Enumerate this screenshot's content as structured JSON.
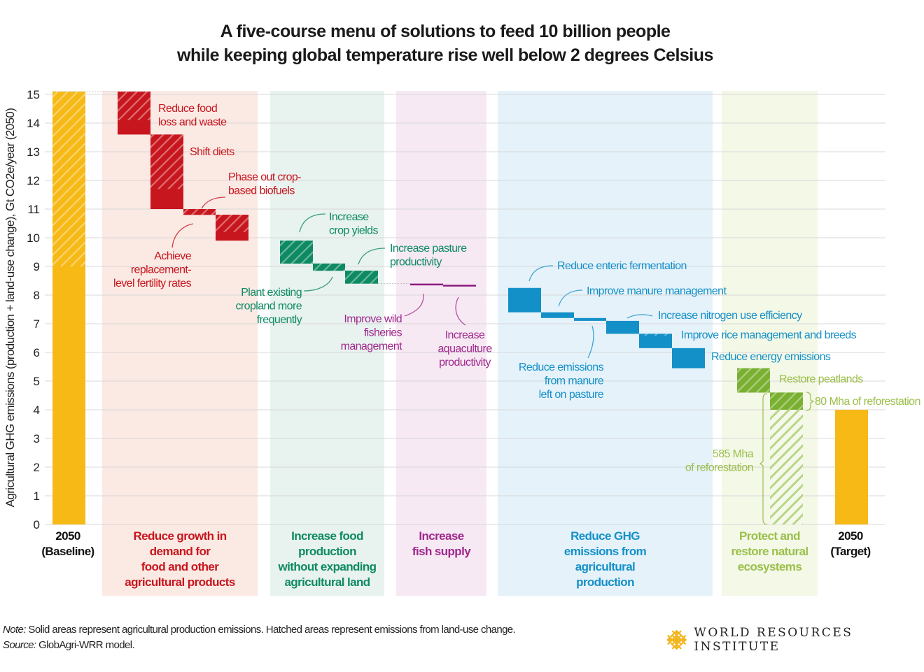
{
  "title_lines": [
    "A five-course menu of solutions to feed 10 billion people",
    "while keeping global temperature rise well below 2 degrees Celsius"
  ],
  "note_label": "Note:",
  "note_text": " Solid areas represent agricultural production emissions. Hatched areas represent emissions from land-use change.",
  "source_label": "Source:",
  "source_text": " GlobAgri-WRR model.",
  "logo_text": "WORLD RESOURCES INSTITUTE",
  "chart_data": {
    "type": "bar",
    "subtype": "waterfall",
    "title": "A five-course menu of solutions to feed 10 billion people while keeping global temperature rise well below 2 degrees Celsius",
    "ylabel": "Agricultural GHG emissions (production + land-use change), Gt CO2e/year (2050)",
    "ylim": [
      0,
      15
    ],
    "yticks": [
      0,
      1,
      2,
      3,
      4,
      5,
      6,
      7,
      8,
      9,
      10,
      11,
      12,
      13,
      14,
      15
    ],
    "grid": true,
    "colors": {
      "baseline": "#f6b916",
      "demand": "#c8161e",
      "production": "#0e8a63",
      "fish": "#8c1a7f",
      "ghg": "#1490c8",
      "ecosystems": "#7ab031"
    },
    "groups": [
      {
        "key": "baseline",
        "label_lines": [
          "2050",
          "(Baseline)"
        ],
        "label_color": "#111111",
        "bg": null
      },
      {
        "key": "demand",
        "label_lines": [
          "Reduce growth in",
          "demand for",
          "food and other",
          "agricultural products"
        ],
        "label_color": "#c8161e",
        "bg": "#fbe9e4"
      },
      {
        "key": "production",
        "label_lines": [
          "Increase food",
          "production",
          "without expanding",
          "agricultural land"
        ],
        "label_color": "#0e8a63",
        "bg": "#e8f2ef"
      },
      {
        "key": "fish",
        "label_lines": [
          "Increase",
          "fish supply"
        ],
        "label_color": "#a0288e",
        "bg": "#f6e9f3"
      },
      {
        "key": "ghg",
        "label_lines": [
          "Reduce GHG",
          "emissions from",
          "agricultural",
          "production"
        ],
        "label_color": "#1490c8",
        "bg": "#e5f2fa"
      },
      {
        "key": "ecosystems",
        "label_lines": [
          "Protect and",
          "restore natural",
          "ecosystems"
        ],
        "label_color": "#9bbf4a",
        "bg": "#f3f8e7"
      },
      {
        "key": "target",
        "label_lines": [
          "2050",
          "(Target)"
        ],
        "label_color": "#111111",
        "bg": null
      }
    ],
    "bars": [
      {
        "name": "2050 Baseline",
        "group": "baseline",
        "from": 0,
        "to": 15.1,
        "hatched_from": 9.0,
        "hatched_to": 15.1,
        "color": "#f6b916"
      },
      {
        "name": "Reduce food loss and waste",
        "group": "demand",
        "from": 13.6,
        "to": 15.1,
        "hatched_from": 14.1,
        "hatched_to": 15.1,
        "color": "#c8161e"
      },
      {
        "name": "Shift diets",
        "group": "demand",
        "from": 11.0,
        "to": 13.6,
        "hatched_from": 11.7,
        "hatched_to": 13.6,
        "color": "#c8161e"
      },
      {
        "name": "Phase out crop-based biofuels",
        "group": "demand",
        "from": 10.8,
        "to": 11.0,
        "hatched_from": 10.8,
        "hatched_to": 11.0,
        "color": "#c8161e"
      },
      {
        "name": "Achieve replacement-level fertility rates",
        "group": "demand",
        "from": 9.9,
        "to": 10.8,
        "hatched_from": 10.2,
        "hatched_to": 10.8,
        "color": "#c8161e"
      },
      {
        "name": "Increase crop yields",
        "group": "production",
        "from": 9.1,
        "to": 9.9,
        "hatched_from": 9.1,
        "hatched_to": 9.9,
        "color": "#0e8a63"
      },
      {
        "name": "Plant existing cropland more frequently",
        "group": "production",
        "from": 8.85,
        "to": 9.1,
        "hatched_from": 8.85,
        "hatched_to": 9.1,
        "color": "#0e8a63"
      },
      {
        "name": "Increase pasture productivity",
        "group": "production",
        "from": 8.4,
        "to": 8.85,
        "hatched_from": 8.4,
        "hatched_to": 8.85,
        "color": "#0e8a63"
      },
      {
        "name": "Improve wild fisheries management",
        "group": "fish",
        "from": 8.36,
        "to": 8.4,
        "hatched_from": null,
        "hatched_to": null,
        "color": "#8c1a7f"
      },
      {
        "name": "Increase aquaculture productivity",
        "group": "fish",
        "from": 8.3,
        "to": 8.36,
        "hatched_from": null,
        "hatched_to": null,
        "color": "#8c1a7f"
      },
      {
        "name": "Reduce enteric fermentation",
        "group": "ghg",
        "from": 7.4,
        "to": 8.25,
        "hatched_from": null,
        "hatched_to": null,
        "color": "#1490c8"
      },
      {
        "name": "Improve manure management",
        "group": "ghg",
        "from": 7.2,
        "to": 7.4,
        "hatched_from": null,
        "hatched_to": null,
        "color": "#1490c8"
      },
      {
        "name": "Reduce emissions from manure left on pasture",
        "group": "ghg",
        "from": 7.1,
        "to": 7.2,
        "hatched_from": null,
        "hatched_to": null,
        "color": "#1490c8"
      },
      {
        "name": "Increase nitrogen use efficiency",
        "group": "ghg",
        "from": 6.65,
        "to": 7.1,
        "hatched_from": null,
        "hatched_to": null,
        "color": "#1490c8"
      },
      {
        "name": "Improve rice management and breeds",
        "group": "ghg",
        "from": 6.15,
        "to": 6.65,
        "hatched_from": 6.6,
        "hatched_to": 6.65,
        "color": "#1490c8"
      },
      {
        "name": "Reduce energy emissions",
        "group": "ghg",
        "from": 5.45,
        "to": 6.15,
        "hatched_from": null,
        "hatched_to": null,
        "color": "#1490c8"
      },
      {
        "name": "Restore peatlands",
        "group": "ecosystems",
        "from": 4.6,
        "to": 5.45,
        "hatched_from": 4.6,
        "hatched_to": 5.45,
        "color": "#7ab031"
      },
      {
        "name": "80 Mha of reforestation",
        "group": "ecosystems",
        "from": 4.0,
        "to": 4.6,
        "hatched_from": 4.0,
        "hatched_to": 4.6,
        "color": "#7ab031"
      },
      {
        "name": "585 Mha of reforestation",
        "group": "ecosystems",
        "from": 0,
        "to": 4.0,
        "hatched_from": 0,
        "hatched_to": 4.0,
        "color": "#7ab031",
        "light": true
      },
      {
        "name": "2050 Target",
        "group": "target",
        "from": 0,
        "to": 4.0,
        "hatched_from": null,
        "hatched_to": null,
        "color": "#f6b916"
      }
    ],
    "annotations": [
      {
        "bar": "Reduce food loss and waste",
        "lines": [
          "Reduce food",
          "loss and waste"
        ],
        "color": "#c8161e"
      },
      {
        "bar": "Shift diets",
        "lines": [
          "Shift diets"
        ],
        "color": "#c8161e"
      },
      {
        "bar": "Phase out crop-based biofuels",
        "lines": [
          "Phase out crop-",
          "based biofuels"
        ],
        "color": "#c8161e"
      },
      {
        "bar": "Achieve replacement-level fertility rates",
        "lines": [
          "Achieve",
          "replacement-",
          "level fertility rates"
        ],
        "color": "#c8161e"
      },
      {
        "bar": "Increase crop yields",
        "lines": [
          "Increase",
          "crop yields"
        ],
        "color": "#0e8a63"
      },
      {
        "bar": "Increase pasture productivity",
        "lines": [
          "Increase pasture",
          "productivity"
        ],
        "color": "#0e8a63"
      },
      {
        "bar": "Plant existing cropland more frequently",
        "lines": [
          "Plant existing",
          "cropland more",
          "frequently"
        ],
        "color": "#0e8a63"
      },
      {
        "bar": "Improve wild fisheries management",
        "lines": [
          "Improve wild",
          "fisheries",
          "management"
        ],
        "color": "#a0288e"
      },
      {
        "bar": "Increase aquaculture productivity",
        "lines": [
          "Increase",
          "aquaculture",
          "productivity"
        ],
        "color": "#a0288e"
      },
      {
        "bar": "Reduce enteric fermentation",
        "lines": [
          "Reduce enteric fermentation"
        ],
        "color": "#1490c8"
      },
      {
        "bar": "Improve manure management",
        "lines": [
          "Improve manure management"
        ],
        "color": "#1490c8"
      },
      {
        "bar": "Increase nitrogen use efficiency",
        "lines": [
          "Increase nitrogen use efficiency"
        ],
        "color": "#1490c8"
      },
      {
        "bar": "Improve rice management and breeds",
        "lines": [
          "Improve rice management and breeds"
        ],
        "color": "#1490c8"
      },
      {
        "bar": "Reduce energy emissions",
        "lines": [
          "Reduce energy emissions"
        ],
        "color": "#1490c8"
      },
      {
        "bar": "Reduce emissions from manure left on pasture",
        "lines": [
          "Reduce emissions",
          "from manure",
          "left on pasture"
        ],
        "color": "#1490c8"
      },
      {
        "bar": "Restore peatlands",
        "lines": [
          "Restore peatlands"
        ],
        "color": "#9bbf4a"
      },
      {
        "bar": "80 Mha of reforestation",
        "lines": [
          "80 Mha of reforestation"
        ],
        "color": "#9bbf4a"
      },
      {
        "bar": "585 Mha of reforestation",
        "lines": [
          "585 Mha",
          "of reforestation"
        ],
        "color": "#9bbf4a"
      }
    ]
  }
}
